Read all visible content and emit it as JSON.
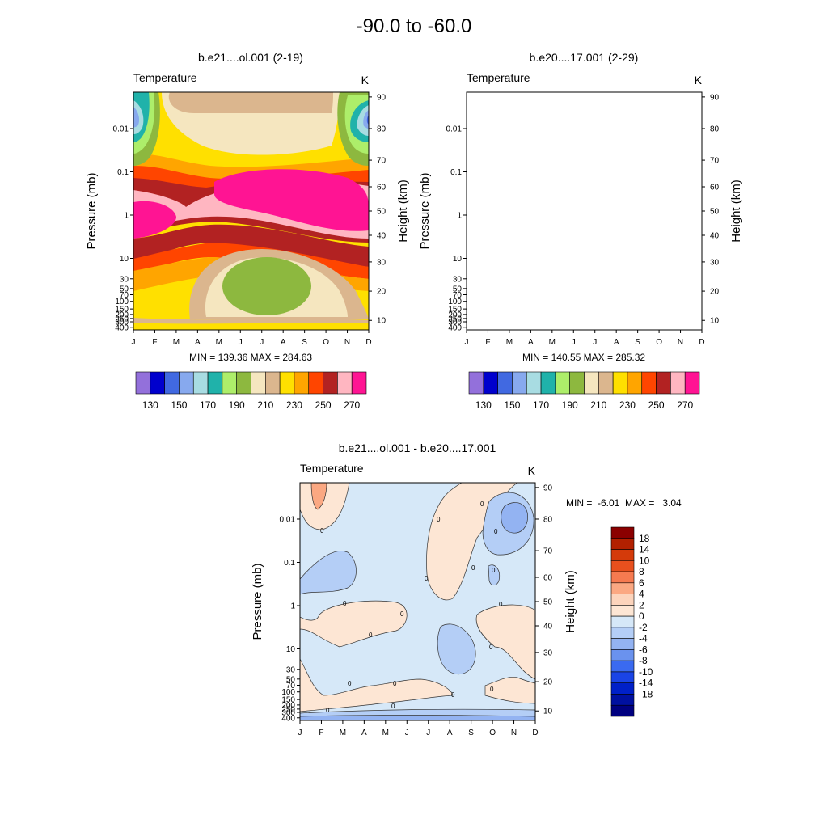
{
  "chart_data": [
    {
      "type": "contour",
      "title": "b.e21....ol.001 (2-19)",
      "variable": "Temperature",
      "units": "K",
      "xlabel": "",
      "ylabel": "Pressure (mb)",
      "ylabel_right": "Height (km)",
      "months": [
        "J",
        "F",
        "M",
        "A",
        "M",
        "J",
        "J",
        "A",
        "S",
        "O",
        "N",
        "D"
      ],
      "pressure_ticks": [
        "0.01",
        "0.1",
        "1",
        "10",
        "30",
        "50",
        "70",
        "100",
        "150",
        "200",
        "250",
        "300",
        "400"
      ],
      "height_ticks": [
        "10",
        "20",
        "30",
        "40",
        "50",
        "60",
        "70",
        "80",
        "90"
      ],
      "min_max_text": "MIN = 139.36  MAX = 284.63",
      "min": 139.36,
      "max": 284.63,
      "levels": [
        130,
        140,
        150,
        160,
        170,
        180,
        190,
        200,
        210,
        220,
        230,
        240,
        250,
        260,
        270,
        280
      ]
    },
    {
      "type": "contour",
      "title": "b.e20....17.001 (2-29)",
      "variable": "Temperature",
      "units": "K",
      "xlabel": "",
      "ylabel": "Pressure (mb)",
      "ylabel_right": "Height (km)",
      "months": [
        "J",
        "F",
        "M",
        "A",
        "M",
        "J",
        "J",
        "A",
        "S",
        "O",
        "N",
        "D"
      ],
      "pressure_ticks": [
        "0.01",
        "0.1",
        "1",
        "10",
        "30",
        "50",
        "70",
        "100",
        "150",
        "200",
        "250",
        "300",
        "400"
      ],
      "height_ticks": [
        "10",
        "20",
        "30",
        "40",
        "50",
        "60",
        "70",
        "80",
        "90"
      ],
      "min_max_text": "MIN = 140.55  MAX = 285.32",
      "min": 140.55,
      "max": 285.32,
      "levels": [
        130,
        140,
        150,
        160,
        170,
        180,
        190,
        200,
        210,
        220,
        230,
        240,
        250,
        260,
        270,
        280
      ]
    },
    {
      "type": "contour-difference",
      "title": "b.e21....ol.001 - b.e20....17.001",
      "variable": "Temperature",
      "units": "K",
      "ylabel": "Pressure (mb)",
      "ylabel_right": "Height (km)",
      "months": [
        "J",
        "F",
        "M",
        "A",
        "M",
        "J",
        "J",
        "A",
        "S",
        "O",
        "N",
        "D"
      ],
      "pressure_ticks": [
        "0.01",
        "0.1",
        "1",
        "10",
        "30",
        "50",
        "70",
        "100",
        "150",
        "200",
        "250",
        "300",
        "400"
      ],
      "height_ticks": [
        "10",
        "20",
        "30",
        "40",
        "50",
        "60",
        "70",
        "80",
        "90"
      ],
      "min_max_text": "MIN =  -6.01  MAX =   3.04",
      "min": -6.01,
      "max": 3.04,
      "contour_label": "0",
      "levels": [
        18,
        14,
        10,
        8,
        6,
        4,
        2,
        0,
        -2,
        -4,
        -6,
        -8,
        -10,
        -14,
        -18
      ]
    }
  ],
  "main_title": "-90.0 to -60.0",
  "colorbar_top": {
    "labels": [
      "130",
      "150",
      "170",
      "190",
      "210",
      "230",
      "250",
      "270"
    ],
    "colors": [
      "#9370db",
      "#0000cd",
      "#4169e1",
      "#87a9ee",
      "#a8dce2",
      "#20b2aa",
      "#adee6a",
      "#8db83f",
      "#f5e6bf",
      "#dbb68e",
      "#ffe000",
      "#ffa500",
      "#ff4500",
      "#b22222",
      "#ffb6c1",
      "#ff1493"
    ]
  },
  "colorbar_diff": {
    "labels": [
      "18",
      "14",
      "10",
      "8",
      "6",
      "4",
      "2",
      "0",
      "-2",
      "-4",
      "-6",
      "-8",
      "-10",
      "-14",
      "-18"
    ],
    "colors": [
      "#8b0000",
      "#b22000",
      "#d43a0a",
      "#e8501e",
      "#f67a50",
      "#fba882",
      "#fcd4bc",
      "#fde6d4",
      "#d6e8f8",
      "#b4cef6",
      "#93b3f2",
      "#6a92ee",
      "#3a6af0",
      "#1a44e6",
      "#0020c8",
      "#0010a0",
      "#000080"
    ]
  }
}
